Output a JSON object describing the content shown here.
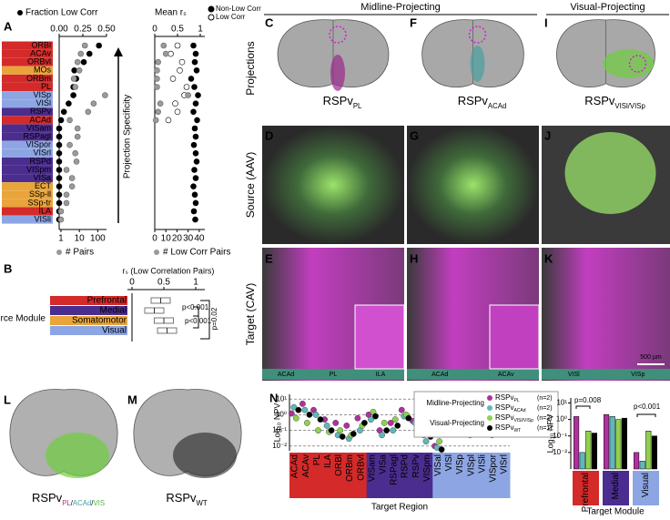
{
  "figure": {
    "panel_labels": [
      "A",
      "B",
      "C",
      "D",
      "E",
      "F",
      "G",
      "H",
      "I",
      "J",
      "K",
      "L",
      "M",
      "N",
      "O"
    ],
    "column_headers": [
      "Midline-Projecting",
      "Visual-Projecting"
    ],
    "row_labels": [
      "Projections",
      "Source (AAV)",
      "Target (CAV)"
    ],
    "brain_labels": [
      {
        "main": "RSPv",
        "sub": "PL"
      },
      {
        "main": "RSPv",
        "sub": "ACAd"
      },
      {
        "main": "RSPv",
        "sub": "VISl/VISp"
      }
    ],
    "strip_labels": [
      [
        "ACAd",
        "PL",
        "ILA"
      ],
      [
        "ACAd",
        "ACAv"
      ],
      [
        "VISl",
        "VISp"
      ]
    ],
    "scale_bar": "500 µm",
    "l_label": {
      "main": "RSPv",
      "sub": [
        "PL",
        "/",
        "ACAd",
        "/",
        "VIS"
      ]
    },
    "m_label": {
      "main": "RSPv",
      "sub": "WT"
    }
  },
  "chart_data": [
    {
      "type": "dot",
      "title": "Fraction Low Corr",
      "arrow_label": "Projection Specificity",
      "categories": [
        "ORBl",
        "ACAv",
        "ORBvl",
        "MOs",
        "ORBm",
        "PL",
        "VISp",
        "VISl",
        "RSPv",
        "ACAd",
        "VISam",
        "RSPagl",
        "VISpor",
        "VISrl",
        "RSPd",
        "VISpm",
        "VISa",
        "ECT",
        "SSp-ll",
        "SSp-tr",
        "ILA",
        "VISli"
      ],
      "category_colors": [
        "#d42a2a",
        "#d42a2a",
        "#d42a2a",
        "#e9a43a",
        "#d42a2a",
        "#d42a2a",
        "#8da6e3",
        "#8da6e3",
        "#4b2d8f",
        "#d42a2a",
        "#4b2d8f",
        "#4b2d8f",
        "#8da6e3",
        "#8da6e3",
        "#4b2d8f",
        "#4b2d8f",
        "#4b2d8f",
        "#e9a43a",
        "#e9a43a",
        "#e9a43a",
        "#d42a2a",
        "#8da6e3"
      ],
      "series": [
        {
          "name": "Fraction Low Corr",
          "color": "#000000",
          "axis": "top",
          "values": [
            0.42,
            0.32,
            0.26,
            0.16,
            0.18,
            0.15,
            0.15,
            0.1,
            0.05,
            0.02,
            0,
            0,
            0,
            0,
            0,
            0,
            0,
            0,
            0,
            0,
            0,
            0
          ]
        },
        {
          "name": "# Pairs",
          "color": "#9a9a9a",
          "axis": "bottom",
          "values": [
            20,
            12,
            8,
            10,
            5,
            6,
            250,
            60,
            30,
            3,
            8,
            8,
            3,
            6,
            7,
            2,
            4,
            4,
            2,
            2,
            1,
            1
          ]
        }
      ],
      "xlim": [
        0,
        0.5
      ],
      "xticks": [
        {
          "value": 0,
          "label": "0.00"
        },
        {
          "value": 0.25,
          "label": "0.25"
        },
        {
          "value": 0.5,
          "label": "0.50"
        }
      ],
      "x2lim": [
        0.8,
        300
      ],
      "x2ticks": [
        1,
        10,
        100
      ],
      "x2log": true
    },
    {
      "type": "dot",
      "title": "Mean rₛ",
      "series": [
        {
          "name": "Non-Low Corr",
          "color": "#000000",
          "axis": "top",
          "values": [
            0.85,
            0.9,
            0.88,
            0.92,
            0.8,
            0.87,
            0.95,
            0.9,
            0.85,
            0.93,
            0.88,
            0.9,
            0.86,
            0.9,
            0.92,
            0.87,
            0.9,
            0.85,
            0.88,
            0.9,
            0.86,
            0.89
          ]
        },
        {
          "name": "Low Corr",
          "color": "#000000",
          "marker": "open",
          "axis": "top",
          "values": [
            0.5,
            0.35,
            0.6,
            0.55,
            0.4,
            0.7,
            0.65,
            0.45,
            0.5,
            0.3,
            null,
            null,
            null,
            null,
            null,
            null,
            null,
            null,
            null,
            null,
            null,
            null
          ]
        },
        {
          "name": "# Low Corr Pairs",
          "color": "#9a9a9a",
          "axis": "bottom",
          "values": [
            8,
            10,
            3,
            2,
            2,
            2,
            30,
            5,
            3,
            1,
            null,
            null,
            null,
            null,
            null,
            null,
            null,
            null,
            null,
            null,
            null,
            null
          ]
        }
      ],
      "xlim": [
        0,
        1.1
      ],
      "xticks": [
        0,
        0.5,
        1
      ],
      "x2lim": [
        0,
        45
      ],
      "x2ticks": [
        0,
        10,
        20,
        30,
        40
      ]
    },
    {
      "type": "box",
      "title": "rₛ (Low Correlation Pairs)",
      "group_label": "Source Module",
      "categories": [
        "Prefrontal",
        "Medial",
        "Somatomotor",
        "Visual"
      ],
      "category_colors": [
        "#d42a2a",
        "#4b2d8f",
        "#e9a43a",
        "#8da6e3"
      ],
      "q1": [
        0.3,
        0.2,
        0.35,
        0.4
      ],
      "median": [
        0.45,
        0.35,
        0.5,
        0.55
      ],
      "q3": [
        0.6,
        0.5,
        0.65,
        0.7
      ],
      "annotations": [
        "p<0.001",
        "p<0.001",
        "p=0.02"
      ],
      "xlim": [
        0,
        1.1
      ],
      "xticks": [
        0,
        0.5,
        1
      ]
    },
    {
      "type": "dot",
      "ylabel": "Log₁₀ NPV",
      "xlabel": "Target Region",
      "log": true,
      "grid": true,
      "legend_groups": [
        "Midline-Projecting",
        "Visual-Projecting"
      ],
      "categories": [
        "ACAd",
        "ACAv",
        "PL",
        "ILA",
        "ORBl",
        "ORBm",
        "ORBvl",
        "VISam",
        "VISa",
        "RSPagl",
        "RSPd",
        "RSPv",
        "VISpm",
        "VISal",
        "VISl",
        "VISp",
        "VISpl",
        "VISli",
        "VISpor",
        "VISrl"
      ],
      "category_colors": [
        "#d42a2a",
        "#d42a2a",
        "#d42a2a",
        "#d42a2a",
        "#d42a2a",
        "#d42a2a",
        "#d42a2a",
        "#4b2d8f",
        "#4b2d8f",
        "#4b2d8f",
        "#4b2d8f",
        "#4b2d8f",
        "#4b2d8f",
        "#8da6e3",
        "#8da6e3",
        "#8da6e3",
        "#8da6e3",
        "#8da6e3",
        "#8da6e3",
        "#8da6e3"
      ],
      "series": [
        {
          "name": "RSPv",
          "sub": "PL",
          "n": "(n=2)",
          "color": "#b0309f",
          "values": [
            1.2,
            5,
            2,
            0.5,
            0.3,
            0.2,
            0.6,
            1,
            0.1,
            0.3,
            2,
            0.4,
            0.05,
            0.01,
            0.3,
            0.2,
            0.1,
            0.4,
            0.1,
            0.2
          ]
        },
        {
          "name": "RSPv",
          "sub": "ACAd",
          "n": "(n=2)",
          "color": "#5fb8b8",
          "values": [
            3,
            2,
            1,
            0.2,
            0.05,
            0.03,
            0.1,
            0.5,
            0.05,
            0.1,
            0.8,
            0.3,
            0.02,
            0.008,
            0.2,
            0.3,
            0.05,
            0.2,
            0.05,
            0.1
          ]
        },
        {
          "name": "RSPv",
          "sub": "VISl/VISp",
          "n": "(n=2)",
          "color": "#8fd14f",
          "values": [
            0.6,
            0.3,
            0.1,
            0.08,
            0.1,
            0.05,
            0.2,
            1.5,
            0.3,
            0.5,
            1,
            0.6,
            0.1,
            0.02,
            1.5,
            2,
            0.5,
            0.8,
            0.3,
            0.4
          ]
        },
        {
          "name": "RSPv",
          "sub": "WT",
          "n": "(n=1)",
          "color": "#000000",
          "values": [
            2,
            1,
            0.5,
            0.1,
            0.04,
            0.06,
            0.3,
            0.8,
            0.1,
            0.2,
            0.6,
            0.3,
            0.04,
            0.006,
            0.5,
            0.8,
            0.2,
            0.3,
            0.1,
            0.1
          ]
        }
      ],
      "ylim": [
        0.005,
        20
      ],
      "yticks": [
        {
          "value": 10,
          "label": "10¹"
        },
        {
          "value": 1,
          "label": "10⁰"
        },
        {
          "value": 0.1,
          "label": "10⁻¹"
        },
        {
          "value": 0.01,
          "label": "10⁻²"
        }
      ]
    },
    {
      "type": "bar",
      "ylabel": "Log₁₀ NPV",
      "xlabel": "Target Module",
      "log": true,
      "categories": [
        "Prefrontal",
        "Medial",
        "Visual"
      ],
      "category_colors": [
        "#d42a2a",
        "#4b2d8f",
        "#8da6e3"
      ],
      "series": [
        {
          "color": "#b0309f",
          "values": [
            1.5,
            2,
            0.01
          ]
        },
        {
          "color": "#5fb8b8",
          "values": [
            0.01,
            1.5,
            0.003
          ]
        },
        {
          "color": "#8fd14f",
          "values": [
            0.2,
            1,
            0.2
          ]
        },
        {
          "color": "#000000",
          "values": [
            0.15,
            1.2,
            0.1
          ]
        }
      ],
      "annotations": [
        "p=0.008",
        "p<0.001"
      ],
      "ylim": [
        0.001,
        20
      ],
      "yticks": [
        {
          "value": 10,
          "label": "10¹"
        },
        {
          "value": 1,
          "label": "10⁰"
        },
        {
          "value": 0.1,
          "label": "10⁻¹"
        },
        {
          "value": 0.01,
          "label": "10⁻²"
        }
      ]
    }
  ]
}
